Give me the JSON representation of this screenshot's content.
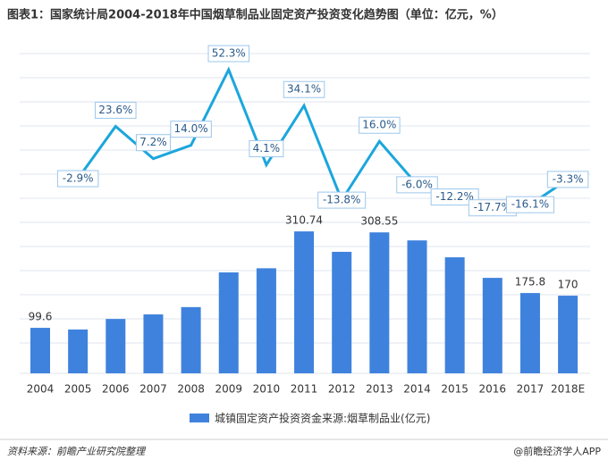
{
  "chart_data": {
    "type": "bar",
    "title": "图表1：国家统计局2004-2018年中国烟草制品业固定资产投资变化趋势图（单位：亿元，%）",
    "categories": [
      "2004",
      "2005",
      "2006",
      "2007",
      "2008",
      "2009",
      "2010",
      "2011",
      "2012",
      "2013",
      "2014",
      "2015",
      "2016",
      "2017",
      "2018E"
    ],
    "ylim": [
      0,
      350
    ],
    "y2lim": [
      -40,
      60
    ],
    "series": [
      {
        "name": "城镇固定资产投资资金来源:烟草制品业(亿元)",
        "type": "bar",
        "color": "#3f82dd",
        "values": [
          99.6,
          96,
          119,
          129,
          145,
          221,
          230,
          310.74,
          266,
          308.55,
          291,
          254,
          209,
          175.8,
          170
        ],
        "value_labels": [
          "99.6",
          null,
          null,
          null,
          null,
          null,
          null,
          "310.74",
          null,
          "308.55",
          null,
          null,
          null,
          "175.8",
          "170"
        ]
      },
      {
        "type": "line",
        "axis": "y2",
        "color": "#1ba6dc",
        "values": [
          null,
          -2.9,
          23.6,
          7.2,
          14.0,
          52.3,
          4.1,
          34.1,
          -13.8,
          16.0,
          -6.0,
          -12.2,
          -17.7,
          -16.1,
          -3.3
        ],
        "value_labels": [
          null,
          "-2.9%",
          "23.6%",
          "7.2%",
          "14.0%",
          "52.3%",
          "4.1%",
          "34.1%",
          "-13.8%",
          "16.0%",
          "-6.0%",
          "-12.2%",
          "-17.7%",
          "-16.1%",
          "-3.3%"
        ]
      }
    ],
    "source": "资料来源：前瞻产业研究院整理",
    "credit": "@前瞻经济学人APP"
  }
}
